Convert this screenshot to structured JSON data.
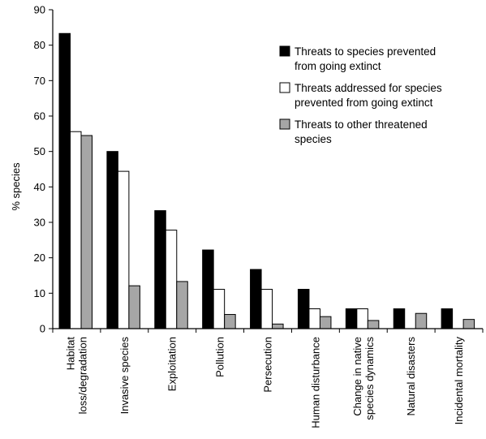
{
  "chart_data": {
    "type": "bar",
    "title": "",
    "xlabel": "",
    "ylabel": "% species",
    "ylim": [
      0,
      90
    ],
    "yticks": [
      0,
      10,
      20,
      30,
      40,
      50,
      60,
      70,
      80,
      90
    ],
    "grid": false,
    "legend_position": "top-right",
    "categories": [
      [
        "Habitat",
        "loss/degradation"
      ],
      [
        "Invasive species"
      ],
      [
        "Exploitation"
      ],
      [
        "Pollution"
      ],
      [
        "Persecution"
      ],
      [
        "Human disturbance"
      ],
      [
        "Change in native",
        "species dynamics"
      ],
      [
        "Natural disasters"
      ],
      [
        "Incidental mortality"
      ]
    ],
    "series": [
      {
        "name": [
          "Threats to species prevented",
          "from going extinct"
        ],
        "fill": "#000000",
        "values": [
          83.3,
          50.0,
          33.3,
          22.2,
          16.7,
          11.1,
          5.6,
          5.6,
          5.6
        ]
      },
      {
        "name": [
          "Threats addressed for species",
          "prevented from going extinct"
        ],
        "fill": "#ffffff",
        "values": [
          55.6,
          44.4,
          27.8,
          11.1,
          11.1,
          5.6,
          5.6,
          0,
          0
        ]
      },
      {
        "name": [
          "Threats to other threatened",
          "species"
        ],
        "fill": "#a6a6a6",
        "values": [
          54.5,
          12.1,
          13.3,
          4.0,
          1.3,
          3.4,
          2.3,
          4.3,
          2.6
        ]
      }
    ]
  }
}
